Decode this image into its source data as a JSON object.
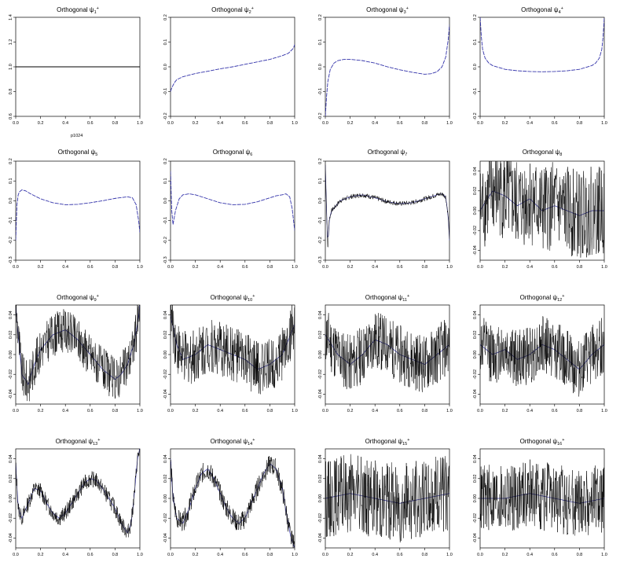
{
  "chart_data": [
    {
      "type": "line",
      "title": "Orthogonal ψ",
      "sub": "1",
      "sup": "+",
      "xlim": [
        0,
        1
      ],
      "ylim": [
        0.6,
        1.4
      ],
      "yticks": [
        0.6,
        0.8,
        1.0,
        1.2,
        1.4
      ],
      "xticks": [
        0.0,
        0.2,
        0.4,
        0.6,
        0.8,
        1.0
      ],
      "noise": 0,
      "seed": 1,
      "series": [
        {
          "color": "#000000",
          "x": [
            0,
            1
          ],
          "y": [
            1.0,
            1.0
          ]
        }
      ],
      "annotation": "p1024"
    },
    {
      "type": "line",
      "title": "Orthogonal ψ",
      "sub": "2",
      "sup": "+",
      "xlim": [
        0,
        1
      ],
      "ylim": [
        -0.2,
        0.2
      ],
      "yticks": [
        -0.2,
        -0.1,
        0.0,
        0.1,
        0.2
      ],
      "xticks": [
        0.0,
        0.2,
        0.4,
        0.6,
        0.8,
        1.0
      ],
      "noise": 0,
      "seed": 2,
      "series": [
        {
          "color": "#3333aa",
          "x": [
            0.0,
            0.01,
            0.03,
            0.05,
            0.1,
            0.2,
            0.3,
            0.4,
            0.5,
            0.6,
            0.7,
            0.8,
            0.9,
            0.95,
            0.99,
            1.0
          ],
          "y": [
            -0.1,
            -0.085,
            -0.065,
            -0.052,
            -0.04,
            -0.027,
            -0.018,
            -0.008,
            0.0,
            0.01,
            0.02,
            0.03,
            0.045,
            0.055,
            0.075,
            0.09
          ]
        }
      ]
    },
    {
      "type": "line",
      "title": "Orthogonal ψ",
      "sub": "3",
      "sup": "+",
      "xlim": [
        0,
        1
      ],
      "ylim": [
        -0.2,
        0.2
      ],
      "yticks": [
        -0.2,
        -0.1,
        0.0,
        0.1,
        0.2
      ],
      "xticks": [
        0.0,
        0.2,
        0.4,
        0.6,
        0.8,
        1.0
      ],
      "noise": 0,
      "seed": 3,
      "series": [
        {
          "color": "#3333aa",
          "x": [
            0.0,
            0.01,
            0.02,
            0.04,
            0.07,
            0.1,
            0.15,
            0.2,
            0.3,
            0.4,
            0.5,
            0.6,
            0.7,
            0.8,
            0.85,
            0.9,
            0.94,
            0.97,
            0.99,
            1.0
          ],
          "y": [
            -0.2,
            -0.12,
            -0.06,
            -0.01,
            0.015,
            0.025,
            0.03,
            0.03,
            0.025,
            0.015,
            0.0,
            -0.012,
            -0.022,
            -0.03,
            -0.028,
            -0.02,
            0.0,
            0.04,
            0.11,
            0.17
          ]
        }
      ]
    },
    {
      "type": "line",
      "title": "Orthogonal ψ",
      "sub": "4",
      "sup": "+",
      "xlim": [
        0,
        1
      ],
      "ylim": [
        -0.2,
        0.2
      ],
      "yticks": [
        -0.2,
        -0.1,
        0.0,
        0.1,
        0.2
      ],
      "xticks": [
        0.0,
        0.2,
        0.4,
        0.6,
        0.8,
        1.0
      ],
      "noise": 0,
      "seed": 4,
      "series": [
        {
          "color": "#3333aa",
          "x": [
            0.0,
            0.01,
            0.02,
            0.04,
            0.07,
            0.1,
            0.2,
            0.3,
            0.4,
            0.5,
            0.6,
            0.7,
            0.8,
            0.9,
            0.93,
            0.96,
            0.98,
            0.99,
            1.0
          ],
          "y": [
            0.2,
            0.12,
            0.07,
            0.035,
            0.015,
            0.005,
            -0.01,
            -0.016,
            -0.019,
            -0.02,
            -0.019,
            -0.016,
            -0.01,
            0.005,
            0.015,
            0.035,
            0.07,
            0.12,
            0.2
          ]
        }
      ]
    },
    {
      "type": "line",
      "title": "Orthogonal ψ",
      "sub": "5",
      "sup": "",
      "xlim": [
        0,
        1
      ],
      "ylim": [
        -0.3,
        0.2
      ],
      "yticks": [
        -0.3,
        -0.2,
        -0.1,
        0.0,
        0.1,
        0.2
      ],
      "xticks": [
        0.0,
        0.2,
        0.4,
        0.6,
        0.8,
        1.0
      ],
      "noise": 0,
      "seed": 5,
      "series": [
        {
          "color": "#3333aa",
          "x": [
            0.0,
            0.01,
            0.02,
            0.03,
            0.05,
            0.08,
            0.12,
            0.2,
            0.3,
            0.4,
            0.5,
            0.6,
            0.7,
            0.8,
            0.9,
            0.94,
            0.97,
            0.99,
            1.0
          ],
          "y": [
            -0.2,
            -0.02,
            0.03,
            0.045,
            0.055,
            0.05,
            0.035,
            0.01,
            -0.01,
            -0.02,
            -0.018,
            -0.01,
            0.0,
            0.012,
            0.02,
            0.015,
            -0.02,
            -0.1,
            -0.16
          ]
        }
      ]
    },
    {
      "type": "line",
      "title": "Orthogonal ψ",
      "sub": "6",
      "sup": "",
      "xlim": [
        0,
        1
      ],
      "ylim": [
        -0.3,
        0.2
      ],
      "yticks": [
        -0.3,
        -0.2,
        -0.1,
        0.0,
        0.1,
        0.2
      ],
      "xticks": [
        0.0,
        0.2,
        0.4,
        0.6,
        0.8,
        1.0
      ],
      "noise": 0,
      "seed": 6,
      "series": [
        {
          "color": "#3333aa",
          "x": [
            0.0,
            0.01,
            0.02,
            0.04,
            0.07,
            0.1,
            0.15,
            0.2,
            0.3,
            0.4,
            0.5,
            0.6,
            0.7,
            0.8,
            0.85,
            0.9,
            0.93,
            0.96,
            0.98,
            1.0
          ],
          "y": [
            0.15,
            -0.05,
            -0.12,
            -0.05,
            0.01,
            0.03,
            0.035,
            0.03,
            0.01,
            -0.01,
            -0.02,
            -0.018,
            -0.005,
            0.015,
            0.025,
            0.03,
            0.035,
            0.02,
            -0.04,
            -0.15
          ]
        }
      ]
    },
    {
      "type": "line",
      "title": "Orthogonal ψ",
      "sub": "7",
      "sup": "",
      "xlim": [
        0,
        1
      ],
      "ylim": [
        -0.3,
        0.2
      ],
      "yticks": [
        -0.3,
        -0.2,
        -0.1,
        0.0,
        0.1,
        0.2
      ],
      "xticks": [
        0.0,
        0.2,
        0.4,
        0.6,
        0.8,
        1.0
      ],
      "noise": 0.012,
      "seed": 7,
      "series": [
        {
          "color": "#000000",
          "x": [
            0.0,
            0.01,
            0.02,
            0.03,
            0.05,
            0.08,
            0.12,
            0.2,
            0.3,
            0.4,
            0.5,
            0.6,
            0.7,
            0.8,
            0.85,
            0.9,
            0.94,
            0.97,
            0.99,
            1.0
          ],
          "y": [
            0.18,
            -0.05,
            -0.25,
            -0.1,
            -0.05,
            -0.03,
            0.0,
            0.02,
            0.03,
            0.015,
            -0.005,
            -0.015,
            -0.01,
            0.01,
            0.02,
            0.03,
            0.035,
            0.02,
            -0.08,
            -0.2
          ]
        }
      ]
    },
    {
      "type": "line",
      "title": "Orthogonal ψ",
      "sub": "8",
      "sup": "",
      "xlim": [
        0,
        1
      ],
      "ylim": [
        -0.05,
        0.05
      ],
      "yticks": [
        -0.04,
        -0.02,
        0.0,
        0.02,
        0.04
      ],
      "xticks": [
        0.0,
        0.2,
        0.4,
        0.6,
        0.8,
        1.0
      ],
      "noise": 0.045,
      "seed": 8,
      "series": [
        {
          "color": "#000000",
          "x": [
            0.0,
            0.1,
            0.2,
            0.3,
            0.4,
            0.5,
            0.6,
            0.7,
            0.8,
            0.9,
            1.0
          ],
          "y": [
            0.0,
            0.02,
            0.015,
            0.005,
            0.012,
            0.0,
            0.005,
            0.0,
            -0.005,
            0.0,
            0.0
          ]
        }
      ]
    },
    {
      "type": "line",
      "title": "Orthogonal ψ",
      "sub": "9",
      "sup": "+",
      "xlim": [
        0,
        1
      ],
      "ylim": [
        -0.05,
        0.05
      ],
      "yticks": [
        -0.04,
        -0.02,
        0.0,
        0.02,
        0.04
      ],
      "xticks": [
        0.0,
        0.2,
        0.4,
        0.6,
        0.8,
        1.0
      ],
      "noise": 0.022,
      "seed": 9,
      "series": [
        {
          "color": "#000000",
          "x": [
            0.0,
            0.02,
            0.05,
            0.1,
            0.15,
            0.2,
            0.3,
            0.4,
            0.5,
            0.6,
            0.7,
            0.8,
            0.85,
            0.9,
            0.95,
            0.98,
            1.0
          ],
          "y": [
            0.05,
            0.02,
            -0.02,
            -0.03,
            -0.01,
            0.005,
            0.02,
            0.025,
            0.015,
            0.0,
            -0.015,
            -0.025,
            -0.02,
            -0.01,
            0.01,
            0.03,
            0.05
          ]
        }
      ]
    },
    {
      "type": "line",
      "title": "Orthogonal ψ",
      "sub": "10",
      "sup": "+",
      "xlim": [
        0,
        1
      ],
      "ylim": [
        -0.05,
        0.05
      ],
      "yticks": [
        -0.04,
        -0.02,
        0.0,
        0.02,
        0.04
      ],
      "xticks": [
        0.0,
        0.2,
        0.4,
        0.6,
        0.8,
        1.0
      ],
      "noise": 0.028,
      "seed": 10,
      "series": [
        {
          "color": "#000000",
          "x": [
            0.0,
            0.05,
            0.1,
            0.2,
            0.3,
            0.4,
            0.5,
            0.6,
            0.7,
            0.8,
            0.9,
            0.95,
            1.0
          ],
          "y": [
            0.04,
            0.01,
            -0.005,
            0.0,
            0.01,
            0.005,
            0.0,
            -0.005,
            -0.015,
            -0.01,
            0.0,
            0.015,
            0.03
          ]
        }
      ]
    },
    {
      "type": "line",
      "title": "Orthogonal ψ",
      "sub": "11",
      "sup": "+",
      "xlim": [
        0,
        1
      ],
      "ylim": [
        -0.05,
        0.05
      ],
      "yticks": [
        -0.04,
        -0.02,
        0.0,
        0.02,
        0.04
      ],
      "xticks": [
        0.0,
        0.2,
        0.4,
        0.6,
        0.8,
        1.0
      ],
      "noise": 0.03,
      "seed": 11,
      "series": [
        {
          "color": "#000000",
          "x": [
            0.0,
            0.1,
            0.2,
            0.3,
            0.4,
            0.5,
            0.6,
            0.7,
            0.8,
            0.9,
            1.0
          ],
          "y": [
            0.02,
            0.0,
            -0.01,
            0.0,
            0.015,
            0.01,
            0.0,
            -0.005,
            -0.01,
            0.0,
            0.01
          ]
        }
      ]
    },
    {
      "type": "line",
      "title": "Orthogonal ψ",
      "sub": "12",
      "sup": "+",
      "xlim": [
        0,
        1
      ],
      "ylim": [
        -0.05,
        0.05
      ],
      "yticks": [
        -0.04,
        -0.02,
        0.0,
        0.02,
        0.04
      ],
      "xticks": [
        0.0,
        0.2,
        0.4,
        0.6,
        0.8,
        1.0
      ],
      "noise": 0.03,
      "seed": 12,
      "series": [
        {
          "color": "#000000",
          "x": [
            0.0,
            0.1,
            0.2,
            0.3,
            0.4,
            0.5,
            0.6,
            0.7,
            0.8,
            0.9,
            1.0
          ],
          "y": [
            0.01,
            0.0,
            0.005,
            -0.005,
            0.0,
            0.01,
            0.005,
            -0.005,
            -0.015,
            0.0,
            0.01
          ]
        }
      ]
    },
    {
      "type": "line",
      "title": "Orthogonal ψ",
      "sub": "13",
      "sup": "+",
      "xlim": [
        0,
        1
      ],
      "ylim": [
        -0.05,
        0.05
      ],
      "yticks": [
        -0.04,
        -0.02,
        0.0,
        0.02,
        0.04
      ],
      "xticks": [
        0.0,
        0.2,
        0.4,
        0.6,
        0.8,
        1.0
      ],
      "noise": 0.008,
      "seed": 13,
      "series": [
        {
          "color": "#000000",
          "x": [
            0.0,
            0.02,
            0.05,
            0.1,
            0.15,
            0.2,
            0.25,
            0.3,
            0.35,
            0.4,
            0.45,
            0.5,
            0.55,
            0.6,
            0.65,
            0.7,
            0.75,
            0.8,
            0.85,
            0.9,
            0.93,
            0.96,
            0.98,
            1.0
          ],
          "y": [
            0.035,
            -0.01,
            -0.02,
            -0.005,
            0.01,
            0.008,
            -0.005,
            -0.015,
            -0.02,
            -0.015,
            -0.005,
            0.005,
            0.015,
            0.02,
            0.018,
            0.01,
            0.0,
            -0.01,
            -0.025,
            -0.035,
            -0.025,
            0.01,
            0.04,
            0.05
          ]
        }
      ]
    },
    {
      "type": "line",
      "title": "Orthogonal ψ",
      "sub": "14",
      "sup": "+",
      "xlim": [
        0,
        1
      ],
      "ylim": [
        -0.05,
        0.05
      ],
      "yticks": [
        -0.04,
        -0.02,
        0.0,
        0.02,
        0.04
      ],
      "xticks": [
        0.0,
        0.2,
        0.4,
        0.6,
        0.8,
        1.0
      ],
      "noise": 0.01,
      "seed": 14,
      "series": [
        {
          "color": "#000000",
          "x": [
            0.0,
            0.02,
            0.05,
            0.1,
            0.15,
            0.2,
            0.25,
            0.3,
            0.35,
            0.4,
            0.45,
            0.5,
            0.55,
            0.6,
            0.65,
            0.7,
            0.75,
            0.8,
            0.85,
            0.9,
            0.94,
            0.97,
            1.0
          ],
          "y": [
            0.04,
            0.0,
            -0.02,
            -0.025,
            -0.01,
            0.01,
            0.025,
            0.03,
            0.02,
            0.005,
            -0.01,
            -0.02,
            -0.025,
            -0.02,
            -0.005,
            0.01,
            0.025,
            0.035,
            0.03,
            0.01,
            -0.02,
            -0.04,
            -0.05
          ]
        }
      ]
    },
    {
      "type": "line",
      "title": "Orthogonal ψ",
      "sub": "15",
      "sup": "+",
      "xlim": [
        0,
        1
      ],
      "ylim": [
        -0.05,
        0.05
      ],
      "yticks": [
        -0.04,
        -0.02,
        0.0,
        0.02,
        0.04
      ],
      "xticks": [
        0.0,
        0.2,
        0.4,
        0.6,
        0.8,
        1.0
      ],
      "noise": 0.04,
      "seed": 15,
      "series": [
        {
          "color": "#000000",
          "x": [
            0.0,
            0.2,
            0.4,
            0.6,
            0.8,
            1.0
          ],
          "y": [
            0.0,
            0.005,
            0.0,
            -0.005,
            0.0,
            0.005
          ]
        }
      ]
    },
    {
      "type": "line",
      "title": "Orthogonal ψ",
      "sub": "16",
      "sup": "+",
      "xlim": [
        0,
        1
      ],
      "ylim": [
        -0.05,
        0.05
      ],
      "yticks": [
        -0.04,
        -0.02,
        0.0,
        0.02,
        0.04
      ],
      "xticks": [
        0.0,
        0.2,
        0.4,
        0.6,
        0.8,
        1.0
      ],
      "noise": 0.035,
      "seed": 16,
      "series": [
        {
          "color": "#000000",
          "x": [
            0.0,
            0.2,
            0.4,
            0.6,
            0.8,
            1.0
          ],
          "y": [
            0.0,
            0.0,
            0.005,
            0.0,
            -0.005,
            0.0
          ]
        }
      ]
    }
  ]
}
